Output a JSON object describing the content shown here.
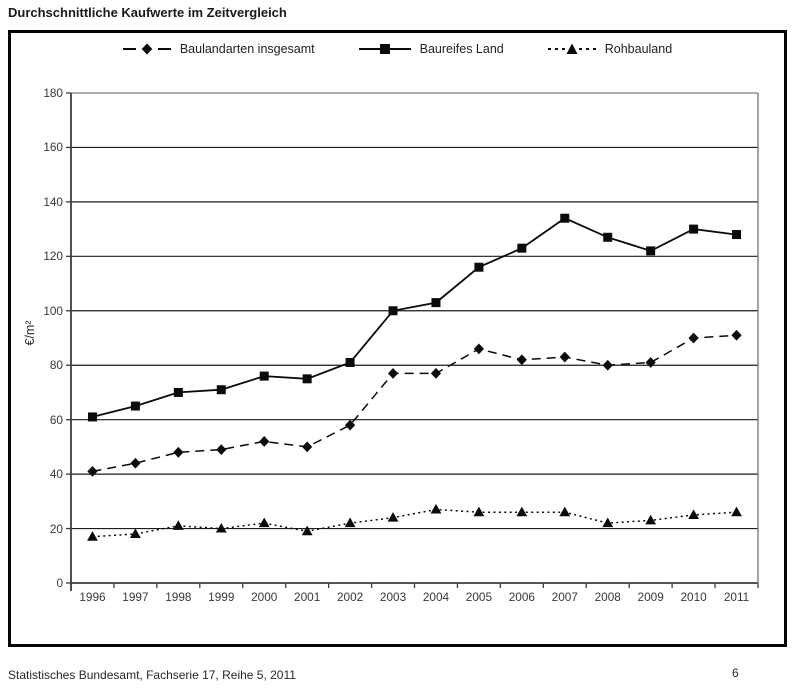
{
  "page_title": "Durchschnittliche Kaufwerte im Zeitvergleich",
  "footer": {
    "source": "Statistisches Bundesamt, Fachserie 17, Reihe 5, 2011",
    "page": "6"
  },
  "colors": {
    "series_line": "#0b0b0b",
    "gridline": "#1c1c1c",
    "axis": "#3d3d3d",
    "top_gridline": "#7d7d7d",
    "tick_text": "#383838"
  },
  "chart_data": {
    "type": "line",
    "title": "Durchschnittliche Kaufwerte im Zeitvergleich",
    "ylabel": "€/m²",
    "xlabel": "",
    "ylim": [
      0,
      180
    ],
    "ytick_step": 20,
    "grid": "horizontal",
    "legend_position": "top",
    "categories": [
      "1996",
      "1997",
      "1998",
      "1999",
      "2000",
      "2001",
      "2002",
      "2003",
      "2004",
      "2005",
      "2006",
      "2007",
      "2008",
      "2009",
      "2010",
      "2011"
    ],
    "series": [
      {
        "name": "Baulandarten insgesamt",
        "style": "dashed",
        "marker": "diamond",
        "values": [
          41,
          44,
          48,
          49,
          52,
          50,
          58,
          77,
          77,
          86,
          82,
          83,
          80,
          81,
          90,
          91
        ]
      },
      {
        "name": "Baureifes Land",
        "style": "solid",
        "marker": "square",
        "values": [
          61,
          65,
          70,
          71,
          76,
          75,
          81,
          100,
          103,
          116,
          123,
          134,
          127,
          122,
          130,
          128
        ]
      },
      {
        "name": "Rohbauland",
        "style": "dotted",
        "marker": "triangle",
        "values": [
          17,
          18,
          21,
          20,
          22,
          19,
          22,
          24,
          27,
          26,
          26,
          26,
          22,
          23,
          25,
          26
        ]
      }
    ]
  }
}
